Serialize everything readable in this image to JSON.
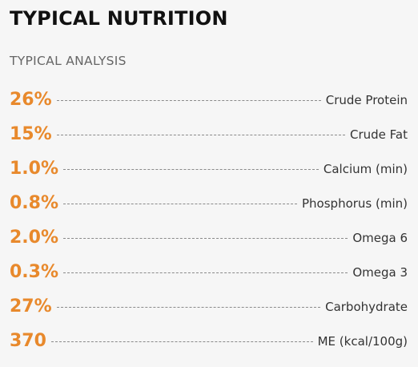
{
  "title": "TYPICAL NUTRITION",
  "subtitle": "TYPICAL ANALYSIS",
  "accent_color": "#e8892c",
  "rows": [
    {
      "value": "26%",
      "label": "Crude Protein"
    },
    {
      "value": "15%",
      "label": "Crude Fat"
    },
    {
      "value": "1.0%",
      "label": "Calcium (min)"
    },
    {
      "value": "0.8%",
      "label": "Phosphorus (min)"
    },
    {
      "value": "2.0%",
      "label": "Omega 6"
    },
    {
      "value": "0.3%",
      "label": "Omega 3"
    },
    {
      "value": "27%",
      "label": "Carbohydrate"
    },
    {
      "value": "370",
      "label": "ME (kcal/100g)"
    }
  ]
}
